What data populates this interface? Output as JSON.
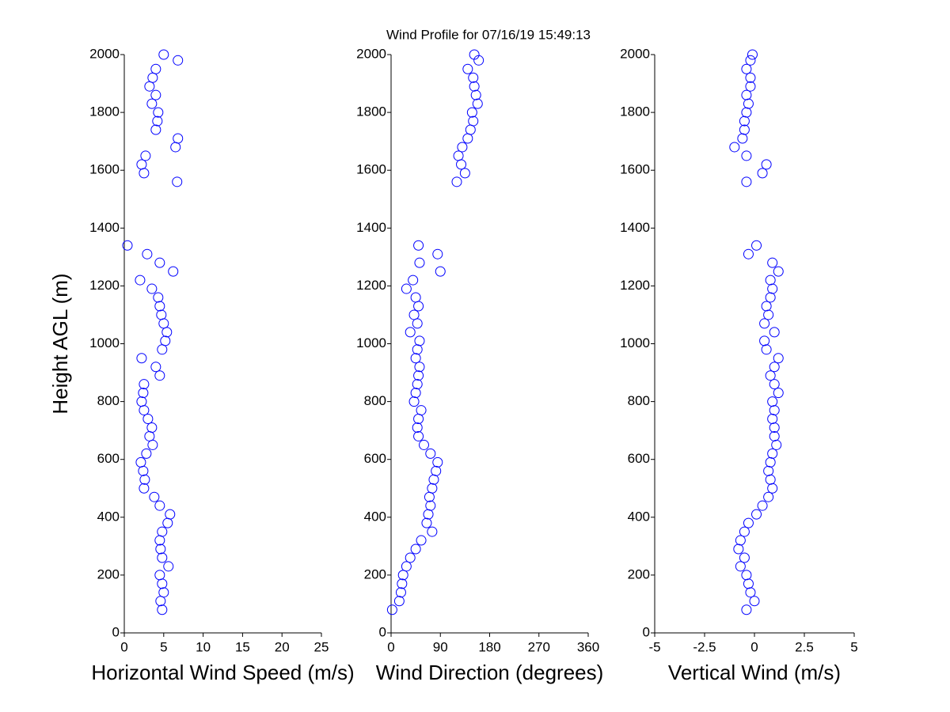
{
  "chart_data": [
    {
      "type": "scatter",
      "title": "Wind Profile for  07/16/19 15:49:13",
      "xlabel": "Horizontal Wind Speed (m/s)",
      "ylabel": "Height AGL (m)",
      "color": "#0000ff",
      "xlim": [
        0,
        25
      ],
      "xticks": [
        0,
        5,
        10,
        15,
        20,
        25
      ],
      "ylim": [
        0,
        2000
      ],
      "yticks": [
        0,
        200,
        400,
        600,
        800,
        1000,
        1200,
        1400,
        1600,
        1800,
        2000
      ],
      "x": [
        4.8,
        4.6,
        5,
        4.8,
        4.5,
        5.6,
        4.8,
        4.6,
        4.5,
        4.8,
        5.5,
        5.8,
        4.5,
        3.8,
        2.5,
        2.6,
        2.4,
        2.1,
        2.8,
        3.6,
        3.2,
        3.5,
        3,
        2.5,
        2.2,
        2.4,
        2.5,
        4.5,
        4,
        2.2,
        4.8,
        5.2,
        5.4,
        5,
        4.7,
        4.5,
        4.3,
        3.5,
        2,
        6.2,
        4.5,
        2.9,
        0.4,
        6.7,
        2.5,
        2.2,
        2.7,
        6.5,
        6.8,
        4,
        4.2,
        4.3,
        3.5,
        4,
        3.2,
        3.6,
        4,
        6.8,
        5
      ],
      "values": [
        80,
        110,
        140,
        170,
        200,
        230,
        260,
        290,
        320,
        350,
        380,
        410,
        440,
        470,
        500,
        530,
        560,
        590,
        620,
        650,
        680,
        710,
        740,
        770,
        800,
        830,
        860,
        890,
        920,
        950,
        980,
        1010,
        1040,
        1070,
        1100,
        1130,
        1160,
        1190,
        1220,
        1250,
        1280,
        1310,
        1340,
        1560,
        1590,
        1620,
        1650,
        1680,
        1710,
        1740,
        1770,
        1800,
        1830,
        1860,
        1890,
        1920,
        1950,
        1980,
        2000
      ]
    },
    {
      "type": "scatter",
      "xlabel": "Wind Direction (degrees)",
      "color": "#0000ff",
      "xlim": [
        0,
        360
      ],
      "xticks": [
        0,
        90,
        180,
        270,
        360
      ],
      "ylim": [
        0,
        2000
      ],
      "yticks": [
        0,
        200,
        400,
        600,
        800,
        1000,
        1200,
        1400,
        1600,
        1800,
        2000
      ],
      "x": [
        2,
        15,
        18,
        20,
        22,
        28,
        35,
        45,
        55,
        75,
        65,
        68,
        72,
        70,
        75,
        78,
        82,
        85,
        72,
        60,
        50,
        48,
        50,
        55,
        42,
        45,
        48,
        50,
        52,
        45,
        48,
        52,
        35,
        48,
        42,
        50,
        45,
        28,
        40,
        90,
        52,
        85,
        50,
        120,
        135,
        128,
        123,
        130,
        140,
        145,
        150,
        148,
        158,
        155,
        152,
        150,
        140,
        160,
        152
      ],
      "values": [
        80,
        110,
        140,
        170,
        200,
        230,
        260,
        290,
        320,
        350,
        380,
        410,
        440,
        470,
        500,
        530,
        560,
        590,
        620,
        650,
        680,
        710,
        740,
        770,
        800,
        830,
        860,
        890,
        920,
        950,
        980,
        1010,
        1040,
        1070,
        1100,
        1130,
        1160,
        1190,
        1220,
        1250,
        1280,
        1310,
        1340,
        1560,
        1590,
        1620,
        1650,
        1680,
        1710,
        1740,
        1770,
        1800,
        1830,
        1860,
        1890,
        1920,
        1950,
        1980,
        2000
      ]
    },
    {
      "type": "scatter",
      "xlabel": "Vertical Wind (m/s)",
      "color": "#0000ff",
      "xlim": [
        -5,
        5
      ],
      "xticks": [
        -5,
        -2.5,
        0,
        2.5,
        5
      ],
      "ylim": [
        0,
        2000
      ],
      "yticks": [
        0,
        200,
        400,
        600,
        800,
        1000,
        1200,
        1400,
        1600,
        1800,
        2000
      ],
      "x": [
        -0.4,
        0,
        -0.2,
        -0.3,
        -0.4,
        -0.7,
        -0.5,
        -0.8,
        -0.7,
        -0.5,
        -0.3,
        0.1,
        0.4,
        0.7,
        0.9,
        0.8,
        0.7,
        0.8,
        0.9,
        1.1,
        1,
        1,
        0.9,
        1,
        0.9,
        1.2,
        1,
        0.8,
        1,
        1.2,
        0.6,
        0.5,
        1,
        0.5,
        0.7,
        0.6,
        0.8,
        0.9,
        0.8,
        1.2,
        0.9,
        -0.3,
        0.1,
        -0.4,
        0.4,
        0.6,
        -0.4,
        -1,
        -0.6,
        -0.5,
        -0.5,
        -0.4,
        -0.3,
        -0.4,
        -0.2,
        -0.2,
        -0.4,
        -0.2,
        -0.1
      ],
      "values": [
        80,
        110,
        140,
        170,
        200,
        230,
        260,
        290,
        320,
        350,
        380,
        410,
        440,
        470,
        500,
        530,
        560,
        590,
        620,
        650,
        680,
        710,
        740,
        770,
        800,
        830,
        860,
        890,
        920,
        950,
        980,
        1010,
        1040,
        1070,
        1100,
        1130,
        1160,
        1190,
        1220,
        1250,
        1280,
        1310,
        1340,
        1560,
        1590,
        1620,
        1650,
        1680,
        1710,
        1740,
        1770,
        1800,
        1830,
        1860,
        1890,
        1920,
        1950,
        1980,
        2000
      ]
    }
  ]
}
